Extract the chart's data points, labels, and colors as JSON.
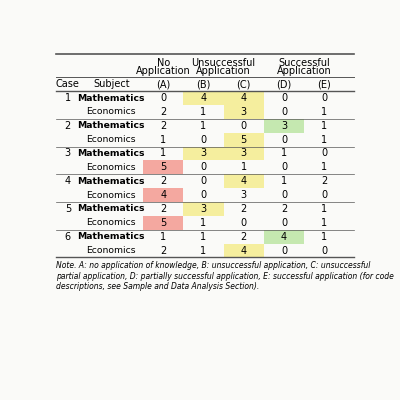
{
  "rows": [
    {
      "case": "1",
      "subject": "Mathematics",
      "vals": [
        0,
        4,
        4,
        0,
        0
      ],
      "highlights": [
        null,
        "yellow",
        "yellow",
        null,
        null
      ]
    },
    {
      "case": "",
      "subject": "Economics",
      "vals": [
        2,
        1,
        3,
        0,
        1
      ],
      "highlights": [
        null,
        null,
        "yellow",
        null,
        null
      ]
    },
    {
      "case": "2",
      "subject": "Mathematics",
      "vals": [
        2,
        1,
        0,
        3,
        1
      ],
      "highlights": [
        null,
        null,
        null,
        "green",
        null
      ]
    },
    {
      "case": "",
      "subject": "Economics",
      "vals": [
        1,
        0,
        5,
        0,
        1
      ],
      "highlights": [
        null,
        null,
        "yellow",
        null,
        null
      ]
    },
    {
      "case": "3",
      "subject": "Mathematics",
      "vals": [
        1,
        3,
        3,
        1,
        0
      ],
      "highlights": [
        null,
        "yellow",
        "yellow",
        null,
        null
      ]
    },
    {
      "case": "",
      "subject": "Economics",
      "vals": [
        5,
        0,
        1,
        0,
        1
      ],
      "highlights": [
        "red",
        null,
        null,
        null,
        null
      ]
    },
    {
      "case": "4",
      "subject": "Mathematics",
      "vals": [
        2,
        0,
        4,
        1,
        2
      ],
      "highlights": [
        null,
        null,
        "yellow",
        null,
        null
      ]
    },
    {
      "case": "",
      "subject": "Economics",
      "vals": [
        4,
        0,
        3,
        0,
        0
      ],
      "highlights": [
        "red",
        null,
        null,
        null,
        null
      ]
    },
    {
      "case": "5",
      "subject": "Mathematics",
      "vals": [
        2,
        3,
        2,
        2,
        1
      ],
      "highlights": [
        null,
        "yellow",
        null,
        null,
        null
      ]
    },
    {
      "case": "",
      "subject": "Economics",
      "vals": [
        5,
        1,
        0,
        0,
        1
      ],
      "highlights": [
        "red",
        null,
        null,
        null,
        null
      ]
    },
    {
      "case": "6",
      "subject": "Mathematics",
      "vals": [
        1,
        1,
        2,
        4,
        1
      ],
      "highlights": [
        null,
        null,
        null,
        "green",
        null
      ]
    },
    {
      "case": "",
      "subject": "Economics",
      "vals": [
        2,
        1,
        4,
        0,
        0
      ],
      "highlights": [
        null,
        null,
        "yellow",
        null,
        null
      ]
    }
  ],
  "note_text": "Note. A: no application of knowledge, B: unsuccessful application, C: unsuccessful\npartial application, D: partially successful application, E: successful application (for code\ndescriptions, see Sample and Data Analysis Section).",
  "yellow_color": "#F5EE9E",
  "red_color": "#F4A8A0",
  "green_color": "#C5E8B0",
  "bg_color": "#FAFAF8",
  "cat_header": [
    {
      "label": "No\nApplication",
      "col_span": [
        2,
        2
      ]
    },
    {
      "label": "Unsuccessful\nApplication",
      "col_span": [
        3,
        4
      ]
    },
    {
      "label": "Successful\nApplication",
      "col_span": [
        5,
        6
      ]
    }
  ],
  "col_headers": [
    "Case",
    "Subject",
    "(A)",
    "(B)",
    "(C)",
    "(D)",
    "(E)"
  ],
  "font_size_data": 7.0,
  "font_size_header": 7.0,
  "font_size_note": 5.5
}
